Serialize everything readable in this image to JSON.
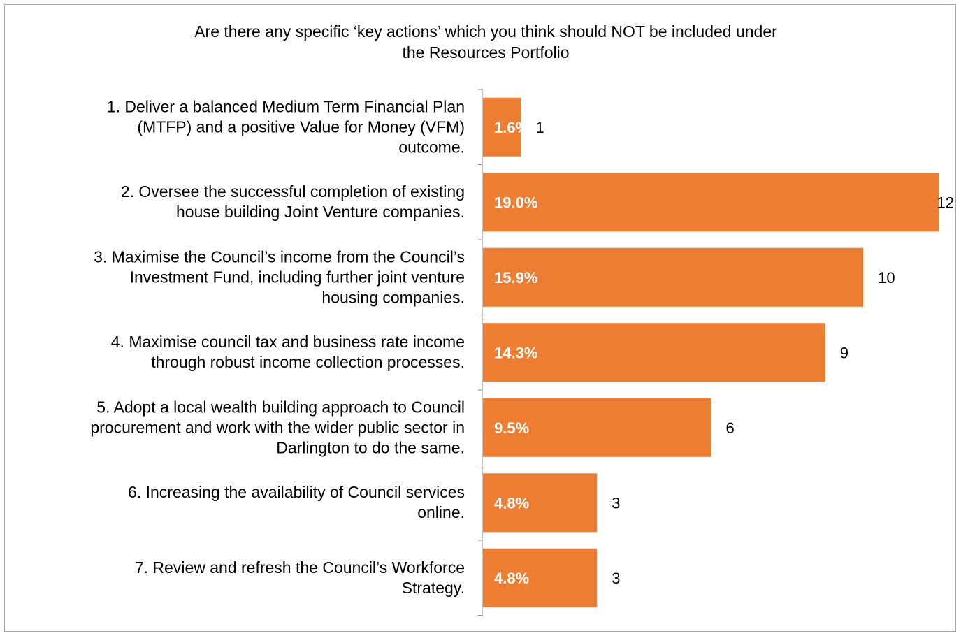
{
  "chart_data": {
    "type": "bar",
    "orientation": "horizontal",
    "title": "Are there any specific ‘key actions’ which you think should NOT be included under the Resources Portfolio",
    "title_lines": [
      "Are there any specific ‘key actions’ which you think should NOT be included under",
      "the Resources Portfolio"
    ],
    "categories": [
      "1. Deliver a balanced Medium Term Financial Plan (MTFP) and a positive Value for Money (VFM) outcome.",
      "2. Oversee the successful completion of existing house building Joint Venture companies.",
      "3. Maximise the Council’s income from the Council’s Investment Fund, including further joint venture housing companies.",
      "4. Maximise council tax and business rate income through robust income collection processes.",
      "5. Adopt a local wealth building approach to Council procurement and work with the wider public sector in Darlington to do the same.",
      "6. Increasing the availability of Council services online.",
      "7. Review and refresh the Council’s Workforce Strategy."
    ],
    "category_lines": [
      [
        "1. Deliver a balanced Medium Term Financial Plan",
        "(MTFP) and a positive Value for Money (VFM)",
        "outcome."
      ],
      [
        "2. Oversee the successful completion of existing",
        "house building Joint Venture companies."
      ],
      [
        "3. Maximise the Council’s income from the Council’s",
        "Investment Fund, including further joint venture",
        "housing companies."
      ],
      [
        "4. Maximise council tax and business rate income",
        "through robust income collection processes."
      ],
      [
        "5. Adopt a local wealth building approach to Council",
        "procurement and work with the wider public sector in",
        "Darlington to do the same."
      ],
      [
        "6. Increasing the availability of Council services",
        "online."
      ],
      [
        "7. Review and refresh the Council’s Workforce",
        "Strategy."
      ]
    ],
    "values": [
      1,
      12,
      10,
      9,
      6,
      3,
      3
    ],
    "percent_labels": [
      "1.6%",
      "19.0%",
      "15.9%",
      "14.3%",
      "9.5%",
      "4.8%",
      "4.8%"
    ],
    "xlim": [
      0,
      12
    ],
    "bar_color": "#ed7d31",
    "legend": "none",
    "grid": false
  }
}
